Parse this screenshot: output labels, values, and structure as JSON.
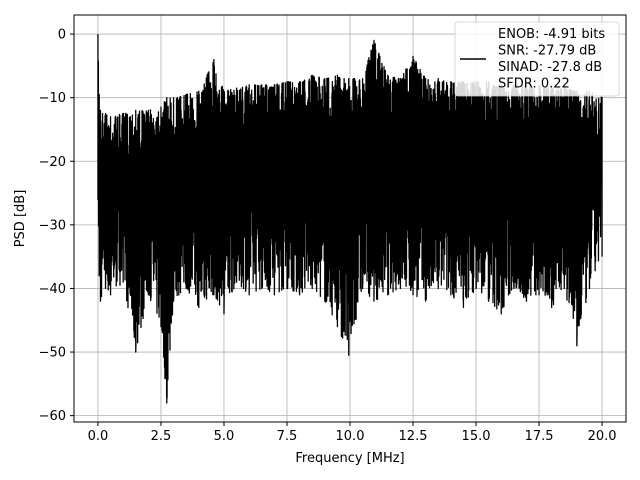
{
  "chart_data": {
    "type": "line",
    "xlabel": "Frequency [MHz]",
    "ylabel": "PSD [dB]",
    "xlim": [
      -0.95,
      20.95
    ],
    "ylim": [
      -61,
      3
    ],
    "xticks": [
      0.0,
      2.5,
      5.0,
      7.5,
      10.0,
      12.5,
      15.0,
      17.5,
      20.0
    ],
    "xtick_labels": [
      "0.0",
      "2.5",
      "5.0",
      "7.5",
      "10.0",
      "12.5",
      "15.0",
      "17.5",
      "20.0"
    ],
    "yticks": [
      0,
      -10,
      -20,
      -30,
      -40,
      -50,
      -60
    ],
    "ytick_labels": [
      "0",
      "−10",
      "−20",
      "−30",
      "−40",
      "−50",
      "−60"
    ],
    "grid": true,
    "legend_position": "top-right",
    "series": [
      {
        "name": "ENOB: -4.91 bits\nSNR: -27.79 dB\nSINAD: -27.8 dB\nSFDR: 0.22",
        "color": "#000000",
        "x": [
          0.0,
          0.05,
          0.1,
          0.3,
          0.5,
          1.0,
          1.5,
          2.0,
          2.5,
          2.73,
          3.0,
          3.5,
          4.0,
          4.6,
          5.0,
          5.5,
          6.0,
          6.5,
          7.0,
          7.5,
          8.0,
          8.5,
          9.0,
          9.5,
          9.95,
          10.5,
          10.95,
          11.5,
          12.0,
          12.5,
          13.0,
          13.5,
          14.0,
          14.5,
          15.0,
          15.5,
          16.0,
          16.5,
          17.0,
          17.5,
          18.0,
          18.5,
          19.0,
          19.5,
          20.0
        ],
        "upper": [
          0.0,
          -9.5,
          -12.0,
          -12.5,
          -13.0,
          -12.5,
          -12.0,
          -12.0,
          -11.5,
          -10.0,
          -10.0,
          -9.5,
          -9.0,
          -4.0,
          -9.0,
          -8.5,
          -8.0,
          -8.0,
          -8.0,
          -7.5,
          -7.5,
          -6.5,
          -7.0,
          -6.5,
          -7.0,
          -7.0,
          -1.0,
          -6.5,
          -7.0,
          -3.5,
          -7.0,
          -7.0,
          -7.5,
          -7.5,
          -7.5,
          -7.5,
          -8.0,
          -8.0,
          -8.0,
          -8.0,
          -8.5,
          -8.5,
          -9.0,
          -9.0,
          -10.0
        ],
        "lower": [
          -26.0,
          -38.0,
          -42.0,
          -40.0,
          -41.0,
          -39.0,
          -50.0,
          -41.0,
          -46.0,
          -58.0,
          -42.0,
          -40.0,
          -43.0,
          -41.0,
          -44.0,
          -39.0,
          -41.0,
          -40.0,
          -41.0,
          -40.0,
          -41.0,
          -40.0,
          -42.0,
          -46.0,
          -50.5,
          -40.0,
          -42.0,
          -41.0,
          -40.0,
          -41.0,
          -42.0,
          -40.0,
          -41.0,
          -43.0,
          -40.0,
          -42.0,
          -44.0,
          -40.0,
          -42.0,
          -41.0,
          -43.0,
          -40.0,
          -49.0,
          -40.0,
          -35.0
        ]
      }
    ]
  }
}
